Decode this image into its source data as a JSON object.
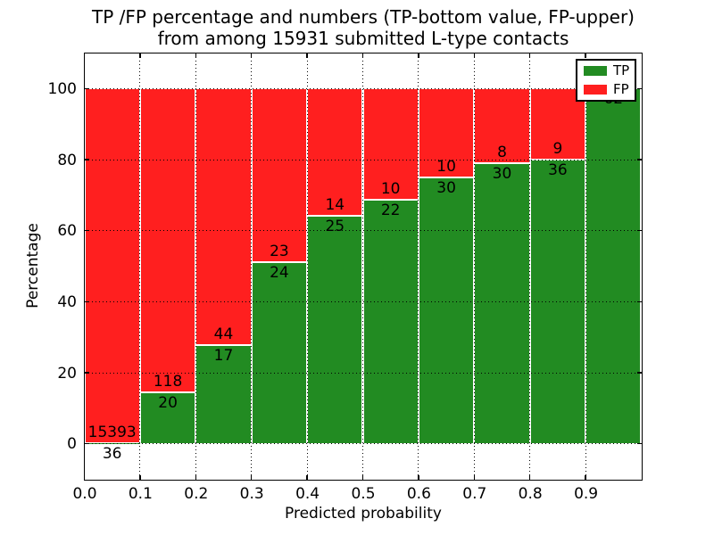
{
  "figure": {
    "title_line1": "TP /FP percentage and numbers (TP-bottom value, FP-upper)",
    "title_line2": "from among 15931 submitted L-type contacts"
  },
  "colors": {
    "tp": "#228b22",
    "fp": "#ff1f1f",
    "axis": "#000000",
    "background": "#ffffff"
  },
  "chart_data": {
    "type": "bar",
    "subtype": "stacked-percentage-histogram",
    "title": "TP /FP percentage and numbers (TP-bottom value, FP-upper) from among 15931 submitted L-type contacts",
    "xlabel": "Predicted probability",
    "ylabel": "Percentage",
    "total_contacts": 15931,
    "grid": true,
    "xlim": [
      0.0,
      1.0
    ],
    "ylim": [
      -10,
      110
    ],
    "x_ticks": [
      "0.0",
      "0.1",
      "0.2",
      "0.3",
      "0.4",
      "0.5",
      "0.6",
      "0.7",
      "0.8",
      "0.9"
    ],
    "y_ticks": [
      "0",
      "20",
      "40",
      "60",
      "80",
      "100"
    ],
    "bin_width": 0.1,
    "categories": [
      "0.0-0.1",
      "0.1-0.2",
      "0.2-0.3",
      "0.3-0.4",
      "0.4-0.5",
      "0.5-0.6",
      "0.6-0.7",
      "0.7-0.8",
      "0.8-0.9",
      "0.9-1.0"
    ],
    "series": [
      {
        "name": "TP",
        "role": "bottom",
        "counts": [
          36,
          20,
          17,
          24,
          25,
          22,
          30,
          30,
          36,
          62
        ]
      },
      {
        "name": "FP",
        "role": "upper",
        "counts": [
          15393,
          118,
          44,
          23,
          14,
          10,
          10,
          8,
          9,
          0
        ]
      }
    ],
    "tp_percent": [
      0.23,
      14.49,
      27.87,
      51.06,
      64.1,
      68.75,
      75.0,
      78.95,
      80.0,
      100.0
    ],
    "legend": {
      "position": "upper right",
      "entries": [
        {
          "label": "TP",
          "color_key": "tp"
        },
        {
          "label": "FP",
          "color_key": "fp"
        }
      ]
    }
  }
}
